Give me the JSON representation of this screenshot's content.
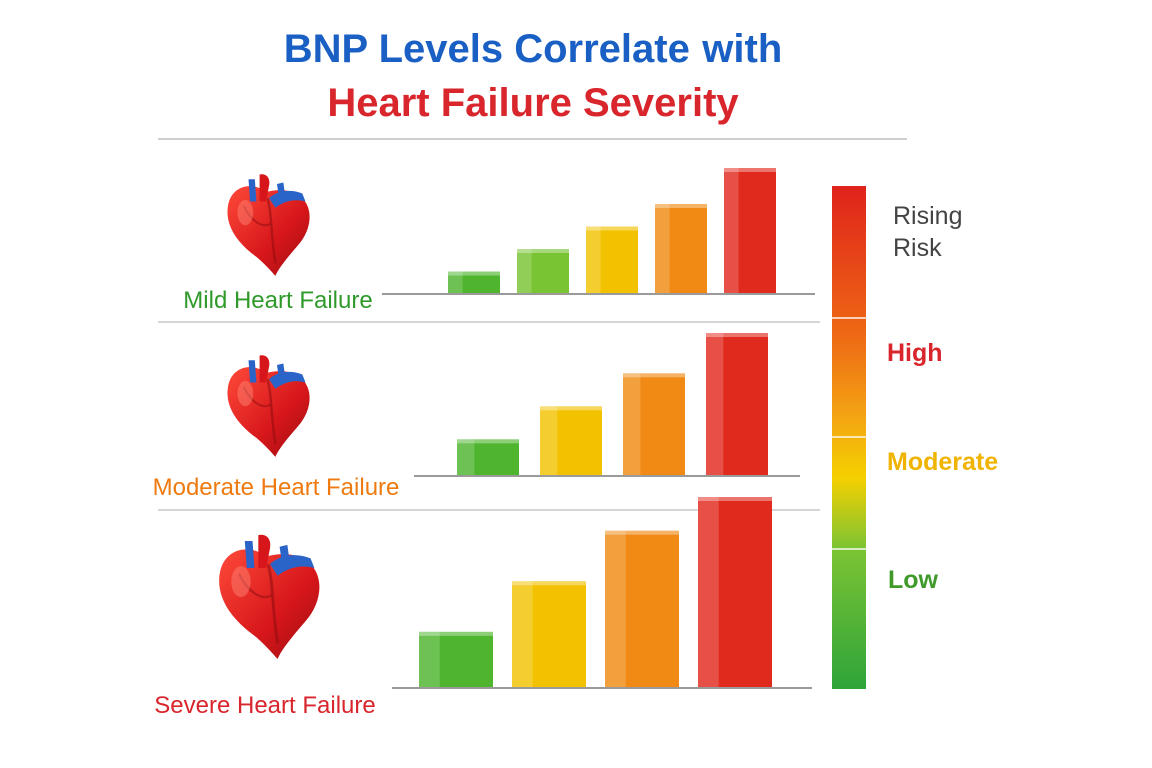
{
  "header": {
    "title_main": "BNP Levels Correlate",
    "title_with": "with",
    "title_line2": "Heart Failure Severity"
  },
  "colors": {
    "blue_title": "#1a5fc4",
    "red_title": "#d8262c",
    "green": "#43a02a",
    "yellow": "#f2c200",
    "orange": "#ee7a10",
    "red": "#e12a1e",
    "gray_text": "#444444"
  },
  "chart_data": [
    {
      "type": "bar",
      "label": "Mild Heart Failure",
      "label_color": "#2f9a2a",
      "values": [
        1,
        2,
        3,
        4,
        5.6
      ],
      "ylim": [
        0,
        6
      ],
      "bar_colors": [
        "#4fb52e",
        "#79c432",
        "#f2c200",
        "#f08a14",
        "#e12a1e"
      ]
    },
    {
      "type": "bar",
      "label": "Moderate Heart Failure",
      "label_color": "#ee7a10",
      "values": [
        1,
        1.9,
        2.8,
        3.9
      ],
      "ylim": [
        0,
        4.2
      ],
      "bar_colors": [
        "#4fb52e",
        "#f2c200",
        "#f08a14",
        "#e12a1e"
      ]
    },
    {
      "type": "bar",
      "label": "Severe Heart Failure",
      "label_color": "#d8262c",
      "values": [
        1,
        1.9,
        2.8,
        3.4
      ],
      "ylim": [
        0,
        3.6
      ],
      "bar_colors": [
        "#4fb52e",
        "#f2c200",
        "#f08a14",
        "#e12a1e"
      ]
    }
  ],
  "scale": {
    "labels": [
      {
        "text": "Rising",
        "color": "#444444"
      },
      {
        "text": "Risk",
        "color": "#444444"
      },
      {
        "text": "High",
        "color": "#d8262c"
      },
      {
        "text": "Moderate",
        "color": "#f0b400"
      },
      {
        "text": "Low",
        "color": "#3f9a2a"
      }
    ]
  }
}
